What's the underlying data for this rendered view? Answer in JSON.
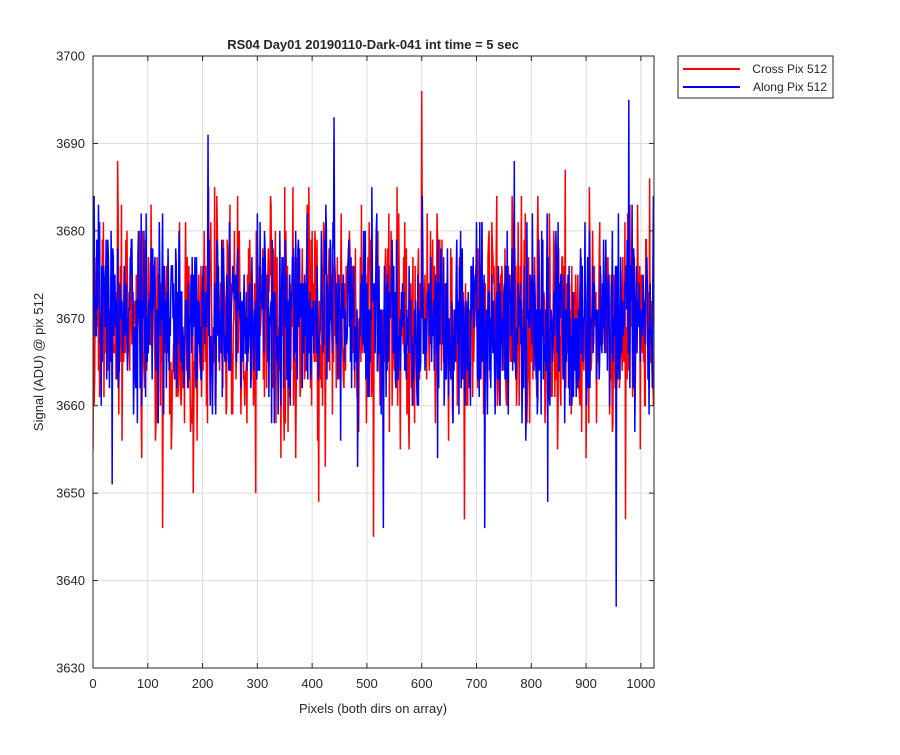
{
  "chart_data": {
    "type": "line",
    "title": "RS04 Day01 20190110-Dark-041 int time = 5 sec",
    "xlabel": "Pixels (both dirs on array)",
    "ylabel": "Signal (ADU) @ pix 512",
    "xlim": [
      0,
      1024
    ],
    "ylim": [
      3630,
      3700
    ],
    "xticks": [
      0,
      100,
      200,
      300,
      400,
      500,
      600,
      700,
      800,
      900,
      1000
    ],
    "yticks": [
      3630,
      3640,
      3650,
      3660,
      3670,
      3680,
      3690,
      3700
    ],
    "grid": true,
    "legend_position": "outside top-right",
    "x_step": 1,
    "series": [
      {
        "name": "Cross Pix 512",
        "color": "#ff0000",
        "mean": 3669.5,
        "noise_sigma": 6.5,
        "sampled_values": [
          {
            "x": 0,
            "y": 3655
          },
          {
            "x": 45,
            "y": 3688
          },
          {
            "x": 127,
            "y": 3646
          },
          {
            "x": 183,
            "y": 3650
          },
          {
            "x": 297,
            "y": 3650
          },
          {
            "x": 412,
            "y": 3649
          },
          {
            "x": 512,
            "y": 3645
          },
          {
            "x": 600,
            "y": 3696
          },
          {
            "x": 678,
            "y": 3647
          },
          {
            "x": 972,
            "y": 3647
          },
          {
            "x": 1023,
            "y": 3660
          }
        ]
      },
      {
        "name": "Along Pix 512",
        "color": "#0000ff",
        "mean": 3670.0,
        "noise_sigma": 5.5,
        "sampled_values": [
          {
            "x": 2,
            "y": 3684
          },
          {
            "x": 35,
            "y": 3651
          },
          {
            "x": 210,
            "y": 3691
          },
          {
            "x": 440,
            "y": 3693
          },
          {
            "x": 530,
            "y": 3646
          },
          {
            "x": 715,
            "y": 3646
          },
          {
            "x": 830,
            "y": 3649
          },
          {
            "x": 955,
            "y": 3637
          },
          {
            "x": 978,
            "y": 3695
          },
          {
            "x": 1023,
            "y": 3684
          }
        ]
      }
    ]
  }
}
